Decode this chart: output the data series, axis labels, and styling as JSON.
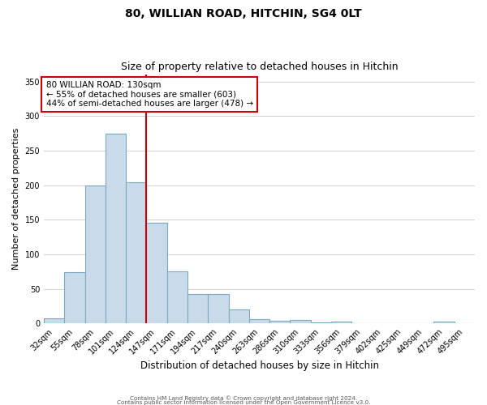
{
  "title1": "80, WILLIAN ROAD, HITCHIN, SG4 0LT",
  "title2": "Size of property relative to detached houses in Hitchin",
  "xlabel": "Distribution of detached houses by size in Hitchin",
  "ylabel": "Number of detached properties",
  "bar_labels": [
    "32sqm",
    "55sqm",
    "78sqm",
    "101sqm",
    "124sqm",
    "147sqm",
    "171sqm",
    "194sqm",
    "217sqm",
    "240sqm",
    "263sqm",
    "286sqm",
    "310sqm",
    "333sqm",
    "356sqm",
    "379sqm",
    "402sqm",
    "425sqm",
    "449sqm",
    "472sqm",
    "495sqm"
  ],
  "bar_heights": [
    7,
    74,
    200,
    275,
    204,
    146,
    75,
    42,
    42,
    20,
    6,
    4,
    5,
    1,
    2,
    0,
    0,
    0,
    0,
    2,
    0
  ],
  "bar_color": "#c9daea",
  "bar_edge_color": "#7aaabf",
  "vline_x_idx": 4,
  "vline_color": "#cc0000",
  "ylim": [
    0,
    360
  ],
  "yticks": [
    0,
    50,
    100,
    150,
    200,
    250,
    300,
    350
  ],
  "annotation_title": "80 WILLIAN ROAD: 130sqm",
  "annotation_line1": "← 55% of detached houses are smaller (603)",
  "annotation_line2": "44% of semi-detached houses are larger (478) →",
  "annotation_box_facecolor": "#ffffff",
  "annotation_box_edgecolor": "#cc0000",
  "footer1": "Contains HM Land Registry data © Crown copyright and database right 2024.",
  "footer2": "Contains public sector information licensed under the Open Government Licence v3.0.",
  "bg_color": "#ffffff"
}
